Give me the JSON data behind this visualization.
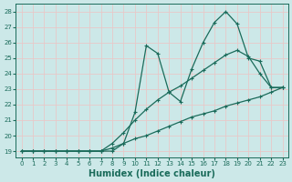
{
  "xlabel": "Humidex (Indice chaleur)",
  "bg_color": "#cce8e8",
  "grid_color": "#e8c8c8",
  "line_color": "#1a6b5a",
  "xlim": [
    -0.5,
    23.5
  ],
  "ylim": [
    18.6,
    28.5
  ],
  "xticks": [
    0,
    1,
    2,
    3,
    4,
    5,
    6,
    7,
    8,
    9,
    10,
    11,
    12,
    13,
    14,
    15,
    16,
    17,
    18,
    19,
    20,
    21,
    22,
    23
  ],
  "yticks": [
    19,
    20,
    21,
    22,
    23,
    24,
    25,
    26,
    27,
    28
  ],
  "line_top_x": [
    0,
    1,
    2,
    3,
    4,
    5,
    6,
    7,
    8,
    9,
    10,
    11,
    12,
    13,
    14,
    15,
    16,
    17,
    18,
    19,
    20,
    21,
    22,
    23
  ],
  "line_top_y": [
    19,
    19,
    19,
    19,
    19,
    19,
    19,
    19,
    19,
    19.5,
    21.5,
    25.8,
    25.3,
    22.8,
    22.2,
    24.3,
    26.0,
    27.3,
    28.0,
    27.2,
    25.0,
    24.8,
    23.1,
    23.1
  ],
  "line_mid_x": [
    0,
    1,
    2,
    3,
    4,
    5,
    6,
    7,
    8,
    9,
    10,
    11,
    12,
    13,
    14,
    15,
    16,
    17,
    18,
    19,
    20,
    21,
    22,
    23
  ],
  "line_mid_y": [
    19,
    19,
    19,
    19,
    19,
    19,
    19,
    19,
    19.5,
    20.2,
    21.0,
    21.7,
    22.3,
    22.8,
    23.2,
    23.7,
    24.2,
    24.7,
    25.2,
    25.5,
    25.1,
    24.0,
    23.1,
    23.1
  ],
  "line_bot_x": [
    0,
    1,
    2,
    3,
    4,
    5,
    6,
    7,
    8,
    9,
    10,
    11,
    12,
    13,
    14,
    15,
    16,
    17,
    18,
    19,
    20,
    21,
    22,
    23
  ],
  "line_bot_y": [
    19,
    19,
    19,
    19,
    19,
    19,
    19,
    19,
    19.2,
    19.5,
    19.8,
    20.0,
    20.3,
    20.6,
    20.9,
    21.2,
    21.4,
    21.6,
    21.9,
    22.1,
    22.3,
    22.5,
    22.8,
    23.1
  ]
}
